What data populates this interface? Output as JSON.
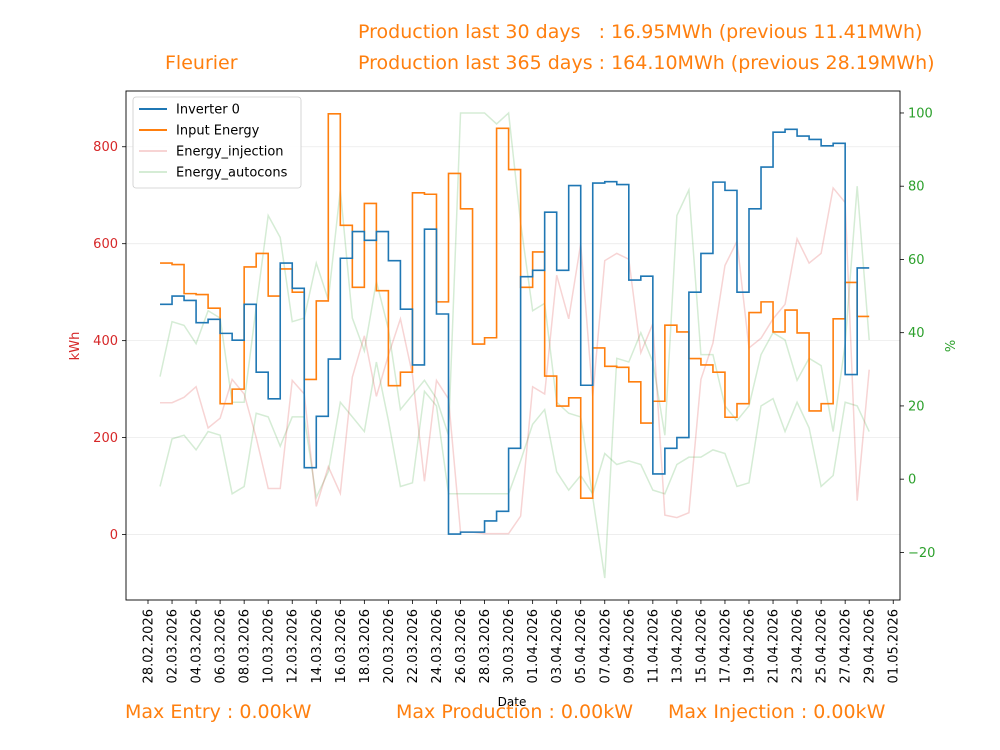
{
  "header": {
    "site_name": "Fleurier",
    "production_30": "Production last 30 days   : 16.95MWh (previous 11.41MWh)",
    "production_365": "Production last 365 days : 164.10MWh (previous 28.19MWh)"
  },
  "footer": {
    "max_entry": "Max Entry : 0.00kW",
    "max_production": "Max Production : 0.00kW",
    "max_injection": "Max Injection : 0.00kW"
  },
  "chart_data": {
    "type": "line",
    "xlabel": "Date",
    "ylabel_left": "kWh",
    "ylabel_right": "%",
    "x_ticks": [
      "28.02.2026",
      "02.03.2026",
      "04.03.2026",
      "06.03.2026",
      "08.03.2026",
      "10.03.2026",
      "12.03.2026",
      "14.03.2026",
      "16.03.2026",
      "18.03.2026",
      "20.03.2026",
      "22.03.2026",
      "24.03.2026",
      "26.03.2026",
      "28.03.2026",
      "30.03.2026",
      "01.04.2026",
      "03.04.2026",
      "05.04.2026",
      "07.04.2026",
      "09.04.2026",
      "11.04.2026",
      "13.04.2026",
      "15.04.2026",
      "17.04.2026",
      "19.04.2026",
      "21.04.2026",
      "23.04.2026",
      "25.04.2026",
      "27.04.2026",
      "29.04.2026",
      "01.05.2026"
    ],
    "x_dates": [
      "01.03.2026",
      "02.03.2026",
      "03.03.2026",
      "04.03.2026",
      "05.03.2026",
      "06.03.2026",
      "07.03.2026",
      "08.03.2026",
      "09.03.2026",
      "10.03.2026",
      "11.03.2026",
      "12.03.2026",
      "13.03.2026",
      "14.03.2026",
      "15.03.2026",
      "16.03.2026",
      "17.03.2026",
      "18.03.2026",
      "19.03.2026",
      "20.03.2026",
      "21.03.2026",
      "22.03.2026",
      "23.03.2026",
      "24.03.2026",
      "25.03.2026",
      "26.03.2026",
      "27.03.2026",
      "28.03.2026",
      "29.03.2026",
      "30.03.2026",
      "31.03.2026",
      "01.04.2026",
      "02.04.2026",
      "03.04.2026",
      "04.04.2026",
      "05.04.2026",
      "06.04.2026",
      "07.04.2026",
      "08.04.2026",
      "09.04.2026",
      "10.04.2026",
      "11.04.2026",
      "12.04.2026",
      "13.04.2026",
      "14.04.2026",
      "15.04.2026",
      "16.04.2026",
      "17.04.2026",
      "18.04.2026",
      "19.04.2026",
      "20.04.2026",
      "21.04.2026",
      "22.04.2026",
      "23.04.2026",
      "24.04.2026",
      "25.04.2026",
      "26.04.2026",
      "27.04.2026",
      "28.04.2026",
      "29.04.2026"
    ],
    "y_left_ticks": [
      0,
      200,
      400,
      600,
      800
    ],
    "y_left_range": [
      -135,
      915
    ],
    "y_right_ticks": [
      -20,
      0,
      20,
      40,
      60,
      80,
      100
    ],
    "y_right_range": [
      -33,
      106
    ],
    "legend_position": "top-left",
    "series": [
      {
        "name": "Inverter 0",
        "color": "#1f77b4",
        "axis": "left",
        "style": "step",
        "opacity": 1,
        "values": [
          475,
          492,
          483,
          437,
          444,
          415,
          401,
          475,
          335,
          280,
          560,
          508,
          138,
          244,
          362,
          570,
          625,
          607,
          625,
          565,
          465,
          350,
          630,
          455,
          1,
          5,
          5,
          28,
          48,
          178,
          532,
          545,
          665,
          545,
          720,
          308,
          725,
          728,
          722,
          525,
          533,
          125,
          178,
          200,
          500,
          580,
          727,
          710,
          500,
          672,
          758,
          830,
          836,
          822,
          815,
          802,
          807,
          330,
          550,
          550
        ]
      },
      {
        "name": "Input Energy",
        "color": "#ff7f0e",
        "axis": "left",
        "style": "step",
        "opacity": 1,
        "values": [
          560,
          557,
          497,
          495,
          467,
          270,
          300,
          552,
          580,
          492,
          548,
          500,
          320,
          482,
          868,
          638,
          510,
          683,
          503,
          307,
          335,
          705,
          702,
          480,
          745,
          672,
          393,
          406,
          838,
          753,
          510,
          583,
          327,
          265,
          282,
          75,
          385,
          347,
          345,
          315,
          230,
          275,
          432,
          418,
          363,
          350,
          335,
          242,
          270,
          458,
          480,
          418,
          463,
          416,
          255,
          270,
          445,
          520,
          450,
          450
        ]
      },
      {
        "name": "Energy_injection",
        "color": "#d62728",
        "axis": "left",
        "style": "line",
        "opacity": 0.2,
        "values": [
          272,
          272,
          283,
          305,
          220,
          240,
          320,
          290,
          200,
          95,
          95,
          318,
          290,
          58,
          140,
          85,
          325,
          410,
          285,
          370,
          445,
          330,
          110,
          318,
          280,
          5,
          5,
          2,
          2,
          2,
          38,
          305,
          290,
          535,
          445,
          600,
          285,
          565,
          580,
          568,
          375,
          435,
          40,
          35,
          45,
          320,
          395,
          555,
          605,
          385,
          405,
          445,
          475,
          610,
          560,
          580,
          715,
          685,
          70,
          340
        ]
      },
      {
        "name": "Energy_autocons",
        "color": "#2ca02c",
        "axis": "right",
        "style": "line",
        "opacity": 0.2,
        "values": [
          28,
          43,
          42,
          37,
          46,
          44,
          21,
          21,
          47,
          72,
          66,
          43,
          44,
          59,
          49,
          79,
          44,
          35,
          54,
          41,
          19,
          23,
          27,
          22,
          12,
          100,
          100,
          100,
          97,
          100,
          70,
          46,
          48,
          21,
          18,
          17,
          -5,
          -27,
          33,
          32,
          40,
          32,
          12,
          72,
          79,
          34,
          34,
          20,
          16,
          20,
          34,
          40,
          38,
          27,
          33,
          31,
          13,
          37,
          80,
          38
        ]
      },
      {
        "name": "",
        "color": "#2ca02c",
        "axis": "right",
        "style": "line",
        "opacity": 0.2,
        "values": [
          -2,
          11,
          12,
          8,
          13,
          12,
          -4,
          -2,
          18,
          17,
          9,
          17,
          17,
          -5,
          2,
          21,
          17,
          13,
          32,
          16,
          -2,
          -1,
          24,
          20,
          -4,
          -4,
          -4,
          -4,
          -4,
          -4,
          5,
          15,
          19,
          2,
          -3,
          1,
          -4,
          7,
          4,
          5,
          4,
          -3,
          -4,
          4,
          6,
          6,
          8,
          7,
          -2,
          -1,
          20,
          22,
          13,
          21,
          14,
          -2,
          1,
          21,
          20,
          13
        ]
      }
    ]
  }
}
